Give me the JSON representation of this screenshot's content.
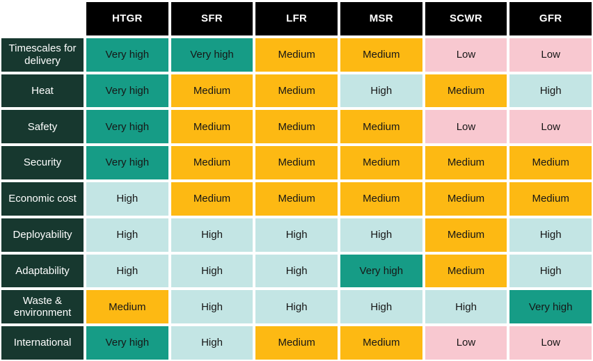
{
  "chart_data": {
    "type": "heatmap",
    "title": "",
    "columns": [
      "HTGR",
      "SFR",
      "LFR",
      "MSR",
      "SCWR",
      "GFR"
    ],
    "rows": [
      {
        "label": "Timescales for delivery",
        "values": [
          "Very high",
          "Very high",
          "Medium",
          "Medium",
          "Low",
          "Low"
        ]
      },
      {
        "label": "Heat",
        "values": [
          "Very high",
          "Medium",
          "Medium",
          "High",
          "Medium",
          "High"
        ]
      },
      {
        "label": "Safety",
        "values": [
          "Very high",
          "Medium",
          "Medium",
          "Medium",
          "Low",
          "Low"
        ]
      },
      {
        "label": "Security",
        "values": [
          "Very high",
          "Medium",
          "Medium",
          "Medium",
          "Medium",
          "Medium"
        ]
      },
      {
        "label": "Economic cost",
        "values": [
          "High",
          "Medium",
          "Medium",
          "Medium",
          "Medium",
          "Medium"
        ]
      },
      {
        "label": "Deployability",
        "values": [
          "High",
          "High",
          "High",
          "High",
          "Medium",
          "High"
        ]
      },
      {
        "label": "Adaptability",
        "values": [
          "High",
          "High",
          "High",
          "Very high",
          "Medium",
          "High"
        ]
      },
      {
        "label": "Waste & environment",
        "values": [
          "Medium",
          "High",
          "High",
          "High",
          "High",
          "Very high"
        ]
      },
      {
        "label": "International",
        "values": [
          "Very high",
          "High",
          "Medium",
          "Medium",
          "Low",
          "Low"
        ]
      }
    ],
    "legend": {
      "Very high": "#169c86",
      "High": "#c3e5e4",
      "Medium": "#fdb913",
      "Low": "#f8c8d0"
    },
    "colors": {
      "header_bg": "#000000",
      "header_text": "#ffffff",
      "row_label_bg": "#17382f",
      "row_label_text": "#ffffff",
      "cell_text": "#161616",
      "grid_gap": "#ffffff"
    }
  }
}
